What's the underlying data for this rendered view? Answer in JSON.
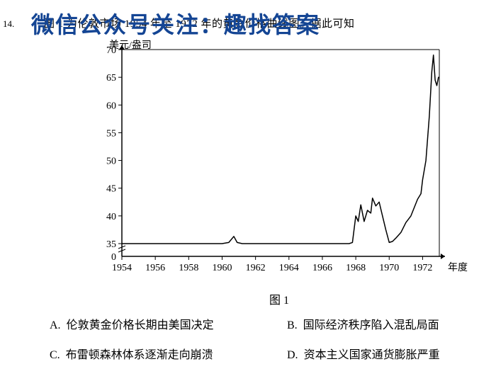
{
  "overlay": {
    "text": "微信公众号关注：趣找答案",
    "color": "#144594",
    "fontsize": 32,
    "fontweight": "bold"
  },
  "question": {
    "number": "14.",
    "stem": "图 1 为伦敦市场 1954 年至 1972 年的黄金价格曲线图。据此可知"
  },
  "chart": {
    "type": "line",
    "ylabel": "美元/盎司",
    "xlabel": "年度",
    "figure_caption": "图 1",
    "xlim": [
      1954,
      1973
    ],
    "ylim": [
      0,
      70
    ],
    "xtick_step": 2,
    "xticks": [
      1954,
      1956,
      1958,
      1960,
      1962,
      1964,
      1966,
      1968,
      1970,
      1972
    ],
    "yticks": [
      0,
      35,
      40,
      45,
      50,
      55,
      60,
      65,
      70
    ],
    "ytick_labels": [
      "0",
      "35",
      "40",
      "45",
      "50",
      "55",
      "60",
      "65",
      "70"
    ],
    "background_color": "#ffffff",
    "axis_color": "#000000",
    "line_color": "#000000",
    "line_width": 1.5,
    "tick_fontsize": 14,
    "label_fontsize": 14,
    "break_marker": true,
    "data": [
      {
        "x": 1954.0,
        "y": 35.0
      },
      {
        "x": 1955.0,
        "y": 35.0
      },
      {
        "x": 1956.0,
        "y": 35.0
      },
      {
        "x": 1957.0,
        "y": 35.0
      },
      {
        "x": 1958.0,
        "y": 35.0
      },
      {
        "x": 1959.0,
        "y": 35.0
      },
      {
        "x": 1960.0,
        "y": 35.0
      },
      {
        "x": 1960.4,
        "y": 35.2
      },
      {
        "x": 1960.7,
        "y": 36.3
      },
      {
        "x": 1960.9,
        "y": 35.2
      },
      {
        "x": 1961.2,
        "y": 35.0
      },
      {
        "x": 1962.0,
        "y": 35.0
      },
      {
        "x": 1963.0,
        "y": 35.0
      },
      {
        "x": 1964.0,
        "y": 35.0
      },
      {
        "x": 1965.0,
        "y": 35.0
      },
      {
        "x": 1966.0,
        "y": 35.0
      },
      {
        "x": 1967.0,
        "y": 35.0
      },
      {
        "x": 1967.6,
        "y": 35.0
      },
      {
        "x": 1967.8,
        "y": 35.2
      },
      {
        "x": 1968.0,
        "y": 40.0
      },
      {
        "x": 1968.15,
        "y": 39.0
      },
      {
        "x": 1968.3,
        "y": 42.0
      },
      {
        "x": 1968.5,
        "y": 39.0
      },
      {
        "x": 1968.7,
        "y": 41.0
      },
      {
        "x": 1968.9,
        "y": 40.5
      },
      {
        "x": 1969.0,
        "y": 43.2
      },
      {
        "x": 1969.2,
        "y": 41.8
      },
      {
        "x": 1969.4,
        "y": 42.5
      },
      {
        "x": 1969.6,
        "y": 40.0
      },
      {
        "x": 1969.8,
        "y": 37.5
      },
      {
        "x": 1970.0,
        "y": 35.2
      },
      {
        "x": 1970.2,
        "y": 35.4
      },
      {
        "x": 1970.4,
        "y": 36.0
      },
      {
        "x": 1970.7,
        "y": 37.0
      },
      {
        "x": 1971.0,
        "y": 38.8
      },
      {
        "x": 1971.3,
        "y": 40.0
      },
      {
        "x": 1971.5,
        "y": 41.5
      },
      {
        "x": 1971.7,
        "y": 43.0
      },
      {
        "x": 1971.9,
        "y": 44.0
      },
      {
        "x": 1972.0,
        "y": 46.5
      },
      {
        "x": 1972.2,
        "y": 50.0
      },
      {
        "x": 1972.4,
        "y": 58.0
      },
      {
        "x": 1972.55,
        "y": 66.0
      },
      {
        "x": 1972.65,
        "y": 69.0
      },
      {
        "x": 1972.75,
        "y": 64.5
      },
      {
        "x": 1972.85,
        "y": 63.5
      },
      {
        "x": 1972.95,
        "y": 65.0
      }
    ]
  },
  "options": {
    "A": {
      "label": "A.",
      "text": "伦敦黄金价格长期由美国决定"
    },
    "B": {
      "label": "B.",
      "text": "国际经济秩序陷入混乱局面"
    },
    "C": {
      "label": "C.",
      "text": "布雷顿森林体系逐渐走向崩溃"
    },
    "D": {
      "label": "D.",
      "text": "资本主义国家通货膨胀严重"
    }
  }
}
